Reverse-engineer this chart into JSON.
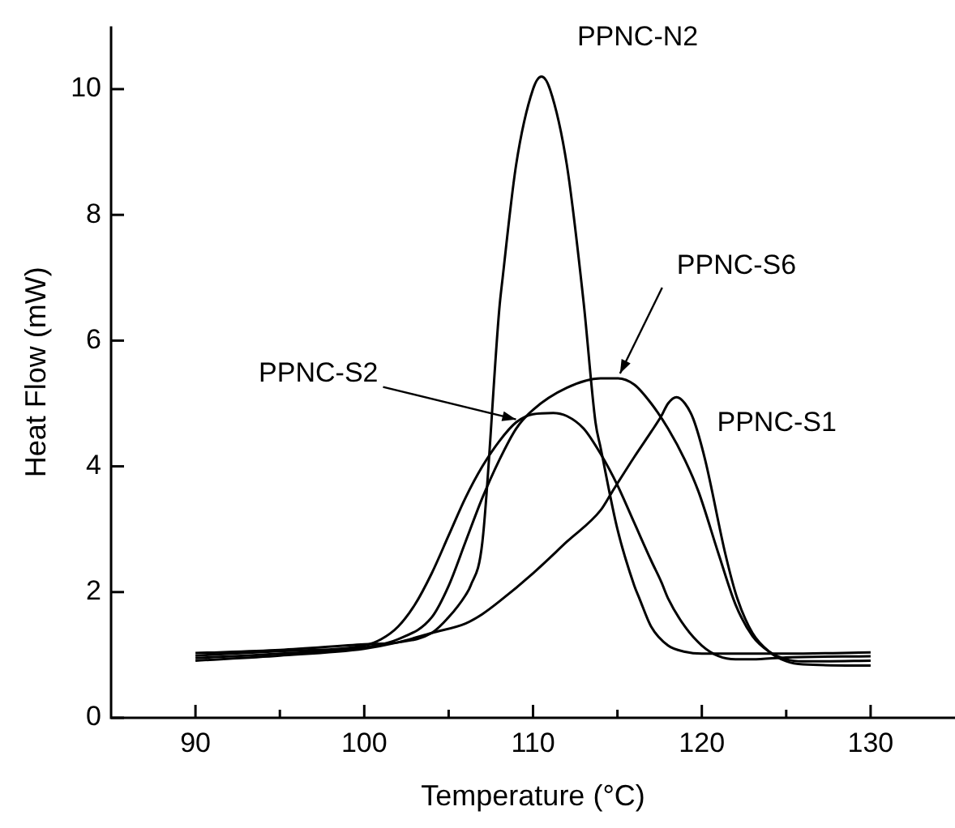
{
  "chart_data": {
    "type": "line",
    "xlabel": "Temperature (°C)",
    "ylabel": "Heat Flow (mW)",
    "xlim": [
      85,
      135
    ],
    "ylim": [
      0,
      11
    ],
    "xticks": [
      90,
      {
        "value": 95,
        "label": null
      },
      100,
      {
        "value": 105,
        "label": null
      },
      110,
      {
        "value": 115,
        "label": null
      },
      120,
      {
        "value": 125,
        "label": null
      },
      130
    ],
    "yticks": [
      0,
      2,
      4,
      6,
      8,
      10
    ],
    "grid": false,
    "legend": false,
    "marker": "none",
    "line_style": "solid",
    "series": [
      {
        "name": "PPNC-N2",
        "color": "#000000",
        "x": [
          90,
          95,
          100,
          102,
          104,
          105,
          106,
          106.3,
          107,
          108,
          108.2,
          109,
          110,
          110.5,
          111,
          112,
          113,
          113.7,
          114,
          115,
          116,
          116.3,
          117,
          118,
          119,
          120,
          122,
          125,
          130
        ],
        "values": [
          1.03,
          1.08,
          1.17,
          1.2,
          1.35,
          1.6,
          1.95,
          2.1,
          2.8,
          6.5,
          7.0,
          8.8,
          10.0,
          10.2,
          10.0,
          8.8,
          6.6,
          4.7,
          4.3,
          3.0,
          2.1,
          1.9,
          1.45,
          1.15,
          1.05,
          1.02,
          1.02,
          1.02,
          1.04
        ]
      },
      {
        "name": "PPNC-S6",
        "color": "#000000",
        "x": [
          90,
          95,
          100,
          102,
          104,
          105,
          106,
          107,
          108,
          109,
          110,
          112,
          114,
          115,
          116,
          117,
          118,
          119,
          119.8,
          121,
          122,
          123,
          124,
          125,
          126,
          127,
          130
        ],
        "values": [
          0.95,
          1.02,
          1.12,
          1.25,
          1.6,
          2.1,
          2.8,
          3.5,
          4.1,
          4.6,
          4.9,
          5.25,
          5.4,
          5.4,
          5.3,
          5.0,
          4.6,
          4.1,
          3.6,
          2.6,
          1.8,
          1.3,
          1.05,
          0.93,
          0.9,
          0.9,
          0.91
        ]
      },
      {
        "name": "PPNC-S2",
        "color": "#000000",
        "x": [
          90,
          95,
          100,
          101,
          102,
          103,
          104,
          105,
          106,
          107,
          108,
          109,
          110,
          111.2,
          112,
          113,
          114,
          115,
          116,
          117,
          117.6,
          118,
          119,
          120,
          121,
          122,
          123,
          125,
          130
        ],
        "values": [
          0.99,
          1.06,
          1.15,
          1.25,
          1.45,
          1.8,
          2.3,
          2.9,
          3.5,
          4.0,
          4.4,
          4.7,
          4.83,
          4.85,
          4.8,
          4.6,
          4.2,
          3.7,
          3.1,
          2.5,
          2.16,
          1.9,
          1.45,
          1.15,
          0.98,
          0.93,
          0.93,
          0.96,
          0.98
        ]
      },
      {
        "name": "PPNC-S1",
        "color": "#000000",
        "x": [
          90,
          95,
          100,
          102,
          104,
          106,
          107,
          108,
          110,
          112,
          114,
          114.7,
          116,
          117,
          117.6,
          118,
          118.5,
          119,
          119.5,
          120.2,
          121.4,
          122.1,
          123,
          124,
          125,
          126,
          130
        ],
        "values": [
          0.91,
          0.99,
          1.1,
          1.2,
          1.35,
          1.5,
          1.65,
          1.85,
          2.3,
          2.8,
          3.3,
          3.6,
          4.15,
          4.55,
          4.8,
          5.0,
          5.1,
          5.0,
          4.75,
          4.1,
          2.6,
          1.9,
          1.35,
          1.05,
          0.9,
          0.85,
          0.83
        ]
      }
    ]
  }
}
